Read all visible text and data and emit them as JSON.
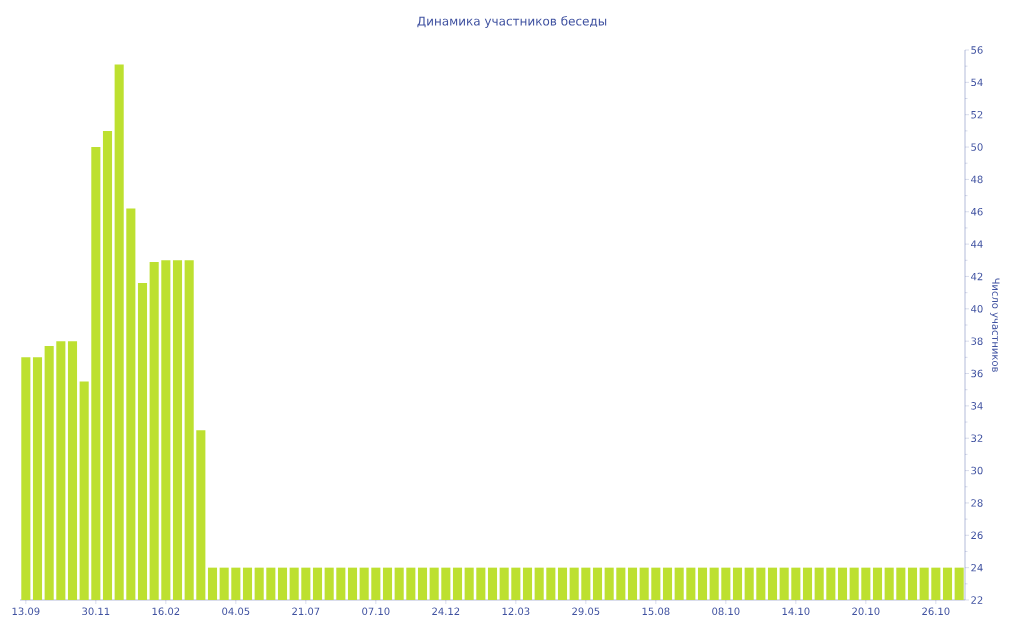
{
  "chart_data": {
    "type": "bar",
    "title": "Динамика участников беседы",
    "ylabel": "Число участников",
    "categories": [
      "13.09",
      null,
      null,
      null,
      null,
      null,
      "30.11",
      null,
      null,
      null,
      null,
      null,
      "16.02",
      null,
      null,
      null,
      null,
      null,
      "04.05",
      null,
      null,
      null,
      null,
      null,
      "21.07",
      null,
      null,
      null,
      null,
      null,
      "07.10",
      null,
      null,
      null,
      null,
      null,
      "24.12",
      null,
      null,
      null,
      null,
      null,
      "12.03",
      null,
      null,
      null,
      null,
      null,
      "29.05",
      null,
      null,
      null,
      null,
      null,
      "15.08",
      null,
      null,
      null,
      null,
      null,
      "08.10",
      null,
      null,
      null,
      null,
      null,
      "14.10",
      null,
      null,
      null,
      null,
      null,
      "20.10",
      null,
      null,
      null,
      null,
      null,
      "26.10",
      null,
      null
    ],
    "values": [
      37,
      37,
      37.7,
      38,
      38,
      35.5,
      50,
      51,
      55.1,
      46.2,
      41.6,
      42.9,
      43,
      43,
      43,
      32.5,
      24,
      24,
      24,
      24,
      24,
      24,
      24,
      24,
      24,
      24,
      24,
      24,
      24,
      24,
      24,
      24,
      24,
      24,
      24,
      24,
      24,
      24,
      24,
      24,
      24,
      24,
      24,
      24,
      24,
      24,
      24,
      24,
      24,
      24,
      24,
      24,
      24,
      24,
      24,
      24,
      24,
      24,
      24,
      24,
      24,
      24,
      24,
      24,
      24,
      24,
      24,
      24,
      24,
      24,
      24,
      24,
      24,
      24,
      24,
      24,
      24,
      24,
      24,
      24,
      24
    ],
    "color": "#bde030",
    "ylim": [
      22,
      56
    ],
    "yticks": [
      22,
      24,
      26,
      28,
      30,
      32,
      34,
      36,
      38,
      40,
      42,
      44,
      46,
      48,
      50,
      52,
      54,
      56
    ]
  }
}
